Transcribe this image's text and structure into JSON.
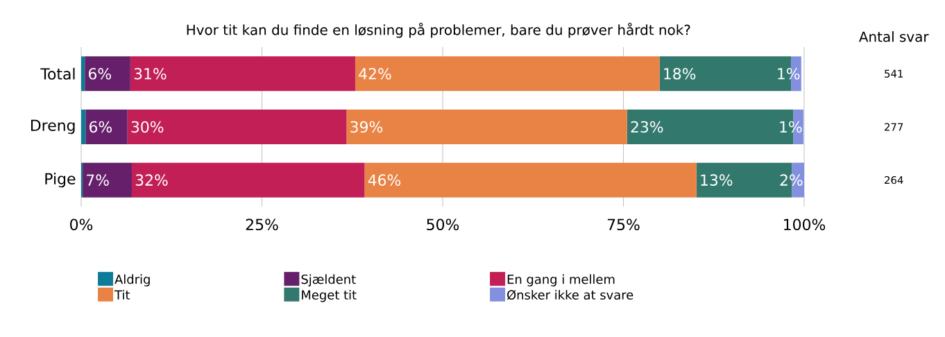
{
  "chart_data": {
    "type": "bar",
    "orientation": "horizontal",
    "stacked": true,
    "title": "Hvor tit kan du finde en løsning på problemer, bare du prøver hårdt nok?",
    "categories": [
      "Total",
      "Dreng",
      "Pige"
    ],
    "series": [
      {
        "name": "Aldrig",
        "color": "#0e7c98",
        "values": [
          0.5,
          0.6,
          0.2
        ],
        "value_labels": [
          null,
          null,
          null
        ]
      },
      {
        "name": "Sjældent",
        "color": "#66206b",
        "values": [
          6.3,
          5.8,
          6.8
        ],
        "value_labels": [
          "6%",
          "6%",
          "7%"
        ]
      },
      {
        "name": "En gang i mellem",
        "color": "#c21f56",
        "values": [
          31.1,
          30.3,
          32.2
        ],
        "value_labels": [
          "31%",
          "30%",
          "32%"
        ]
      },
      {
        "name": "Tit",
        "color": "#e98245",
        "values": [
          42.1,
          38.8,
          45.9
        ],
        "value_labels": [
          "42%",
          "39%",
          "46%"
        ]
      },
      {
        "name": "Meget tit",
        "color": "#32786c",
        "values": [
          18.2,
          23.0,
          13.2
        ],
        "value_labels": [
          "18%",
          "23%",
          "13%"
        ]
      },
      {
        "name": "Ønsker ikke at svare",
        "color": "#8390e0",
        "values": [
          1.4,
          1.4,
          1.7
        ],
        "value_labels": [
          "1%",
          "1%",
          "2%"
        ]
      }
    ],
    "xlim": [
      0,
      100
    ],
    "xticks": [
      {
        "value": 0,
        "label": "0%"
      },
      {
        "value": 25,
        "label": "25%"
      },
      {
        "value": 50,
        "label": "50%"
      },
      {
        "value": 75,
        "label": "75%"
      },
      {
        "value": 100,
        "label": "100%"
      }
    ],
    "grid": "x",
    "legend": "bottom",
    "annotations": [
      "Antal svar",
      "541",
      "277",
      "264"
    ]
  }
}
